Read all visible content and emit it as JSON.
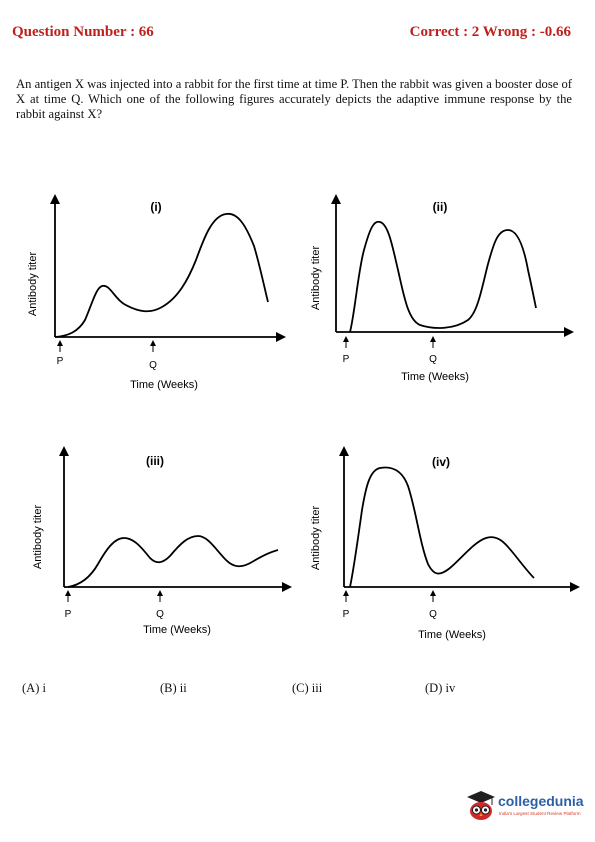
{
  "header": {
    "question_number": "Question Number : 66",
    "score": "Correct : 2  Wrong : -0.66"
  },
  "question": {
    "text": "An antigen X was injected into a rabbit for the first time at time P. Then the rabbit was given a booster dose of X at time Q. Which one of the following figures accurately depicts the adaptive immune response by the rabbit against X?"
  },
  "figures": [
    {
      "label": "(i)",
      "ylabel": "Antibody titer",
      "xlabel": "Time (Weeks)",
      "p": "P",
      "q": "Q"
    },
    {
      "label": "(ii)",
      "ylabel": "Antibody titer",
      "xlabel": "Time (Weeks)",
      "p": "P",
      "q": "Q"
    },
    {
      "label": "(iii)",
      "ylabel": "Antibody titer",
      "xlabel": "Time (Weeks)",
      "p": "P",
      "q": "Q"
    },
    {
      "label": "(iv)",
      "ylabel": "Antibody titer",
      "xlabel": "Time (Weeks)",
      "p": "P",
      "q": "Q"
    }
  ],
  "options": [
    "(A) i",
    "(B) ii",
    "(C) iii",
    "(D) iv"
  ],
  "logo": {
    "name": "collegedunia",
    "tagline": "India's Largest Student Review Platform"
  }
}
